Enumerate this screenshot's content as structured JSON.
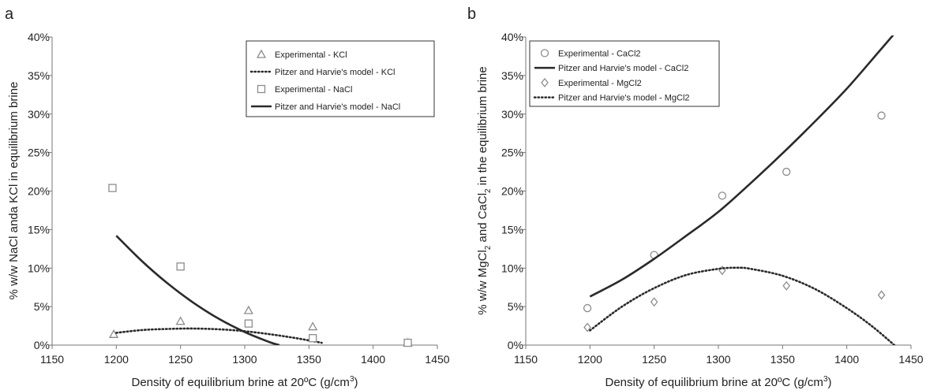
{
  "chart_data": [
    {
      "type": "scatter",
      "panel_label": "a",
      "xlabel": "Density of equilibrium brine at 20ºC (g/cm",
      "xlabel_sup": "3",
      "xlabel_end": ")",
      "ylabel": "% w/w NaCl anda KCl in equilibrium brine",
      "xlim": [
        1150,
        1450
      ],
      "ylim": [
        0,
        40
      ],
      "xticks": [
        "1150",
        "1200",
        "1250",
        "1300",
        "1350",
        "1400",
        "1450"
      ],
      "yticks": [
        "0%",
        "5%",
        "10%",
        "15%",
        "20%",
        "25%",
        "30%",
        "35%",
        "40%"
      ],
      "legend_position": "top-right",
      "grid": false,
      "series": [
        {
          "name": "Experimental - KCl",
          "kind": "marker",
          "marker": "triangle",
          "x": [
            1198,
            1250,
            1303,
            1353,
            1427
          ],
          "y": [
            1.4,
            3.1,
            4.5,
            2.4,
            0.3
          ]
        },
        {
          "name": "Pitzer and Harvie's model - KCl",
          "kind": "dotted",
          "x": [
            1200,
            1220,
            1240,
            1260,
            1280,
            1300,
            1320,
            1340,
            1360
          ],
          "y": [
            1.6,
            1.95,
            2.1,
            2.15,
            2.05,
            1.8,
            1.4,
            0.9,
            0.3
          ]
        },
        {
          "name": "Experimental - NaCl",
          "kind": "marker",
          "marker": "square",
          "x": [
            1197,
            1250,
            1303,
            1353,
            1427
          ],
          "y": [
            20.4,
            10.2,
            2.8,
            0.9,
            0.3
          ]
        },
        {
          "name": "Pitzer and Harvie's model - NaCl",
          "kind": "solid",
          "x": [
            1200,
            1220,
            1240,
            1260,
            1280,
            1300,
            1320,
            1327
          ],
          "y": [
            14.2,
            10.9,
            8.0,
            5.5,
            3.4,
            1.7,
            0.35,
            0
          ]
        }
      ]
    },
    {
      "type": "scatter",
      "panel_label": "b",
      "xlabel": "Density of equilibrium brine at 20ºC (g/cm",
      "xlabel_sup": "3",
      "xlabel_end": ")",
      "ylabel_parts": [
        "% w/w MgCl",
        "2",
        " and CaCl",
        "2",
        " in the equilibrium brine"
      ],
      "xlim": [
        1150,
        1450
      ],
      "ylim": [
        0,
        40
      ],
      "xticks": [
        "1150",
        "1200",
        "1250",
        "1300",
        "1350",
        "1400",
        "1450"
      ],
      "yticks": [
        "0%",
        "5%",
        "10%",
        "15%",
        "20%",
        "25%",
        "30%",
        "35%",
        "40%"
      ],
      "legend_position": "top-left",
      "grid": false,
      "series": [
        {
          "name": "Experimental - CaCl2",
          "kind": "marker",
          "marker": "circle",
          "x": [
            1198,
            1250,
            1303,
            1353,
            1427
          ],
          "y": [
            4.8,
            11.7,
            19.4,
            22.5,
            29.8
          ]
        },
        {
          "name": "Pitzer and Harvie's model - CaCl2",
          "kind": "solid",
          "x": [
            1200,
            1225,
            1250,
            1275,
            1300,
            1325,
            1350,
            1375,
            1400,
            1425,
            1440
          ],
          "y": [
            6.3,
            8.5,
            11.2,
            14.2,
            17.3,
            21.0,
            24.9,
            29.0,
            33.3,
            38.1,
            41.0
          ]
        },
        {
          "name": "Experimental - MgCl2",
          "kind": "marker",
          "marker": "diamond",
          "x": [
            1198,
            1250,
            1303,
            1353,
            1427
          ],
          "y": [
            2.3,
            5.6,
            9.7,
            7.7,
            6.5
          ]
        },
        {
          "name": "Pitzer and Harvie's model - MgCl2",
          "kind": "dotted",
          "x": [
            1200,
            1225,
            1250,
            1275,
            1300,
            1315,
            1325,
            1350,
            1375,
            1400,
            1420,
            1437
          ],
          "y": [
            1.9,
            5.0,
            7.4,
            9.1,
            9.9,
            10.05,
            9.9,
            9.0,
            7.3,
            4.8,
            2.4,
            0
          ]
        }
      ]
    }
  ]
}
